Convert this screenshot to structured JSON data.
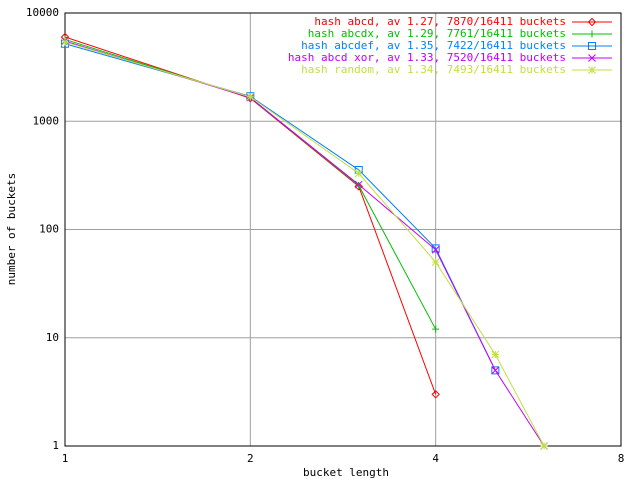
{
  "chart_data": {
    "type": "line",
    "xlabel": "bucket length",
    "ylabel": "number of buckets",
    "x": [
      1,
      2,
      3,
      4,
      5,
      6
    ],
    "series": [
      {
        "name": "hash abcd, av 1.27, 7870/16411 buckets",
        "color": "#ff0000",
        "marker": "diamond",
        "values": [
          6000,
          1630,
          250,
          3,
          null,
          null
        ]
      },
      {
        "name": "hash abcdx, av 1.29, 7761/16411 buckets",
        "color": "#00c000",
        "marker": "plus",
        "values": [
          5700,
          1650,
          255,
          12,
          null,
          null
        ]
      },
      {
        "name": "hash abcdef, av 1.35, 7422/16411 buckets",
        "color": "#0080ff",
        "marker": "square",
        "values": [
          5200,
          1700,
          355,
          67,
          5,
          null
        ]
      },
      {
        "name": "hash abcd xor, av 1.33, 7520/16411 buckets",
        "color": "#c000ff",
        "marker": "cross",
        "values": [
          5500,
          1650,
          260,
          65,
          5,
          1
        ]
      },
      {
        "name": "hash random, av 1.34, 7493/16411 buckets",
        "color": "#c0e040",
        "marker": "star",
        "values": [
          5400,
          1680,
          330,
          50,
          7,
          1
        ]
      }
    ],
    "xlim": [
      1,
      8
    ],
    "xticks": [
      1,
      2,
      4,
      8
    ],
    "ylim": [
      1,
      10000
    ],
    "yticks": [
      1,
      10,
      100,
      1000,
      10000
    ],
    "xlog": true,
    "ylog": true,
    "grid": true,
    "legend": "top-right"
  }
}
